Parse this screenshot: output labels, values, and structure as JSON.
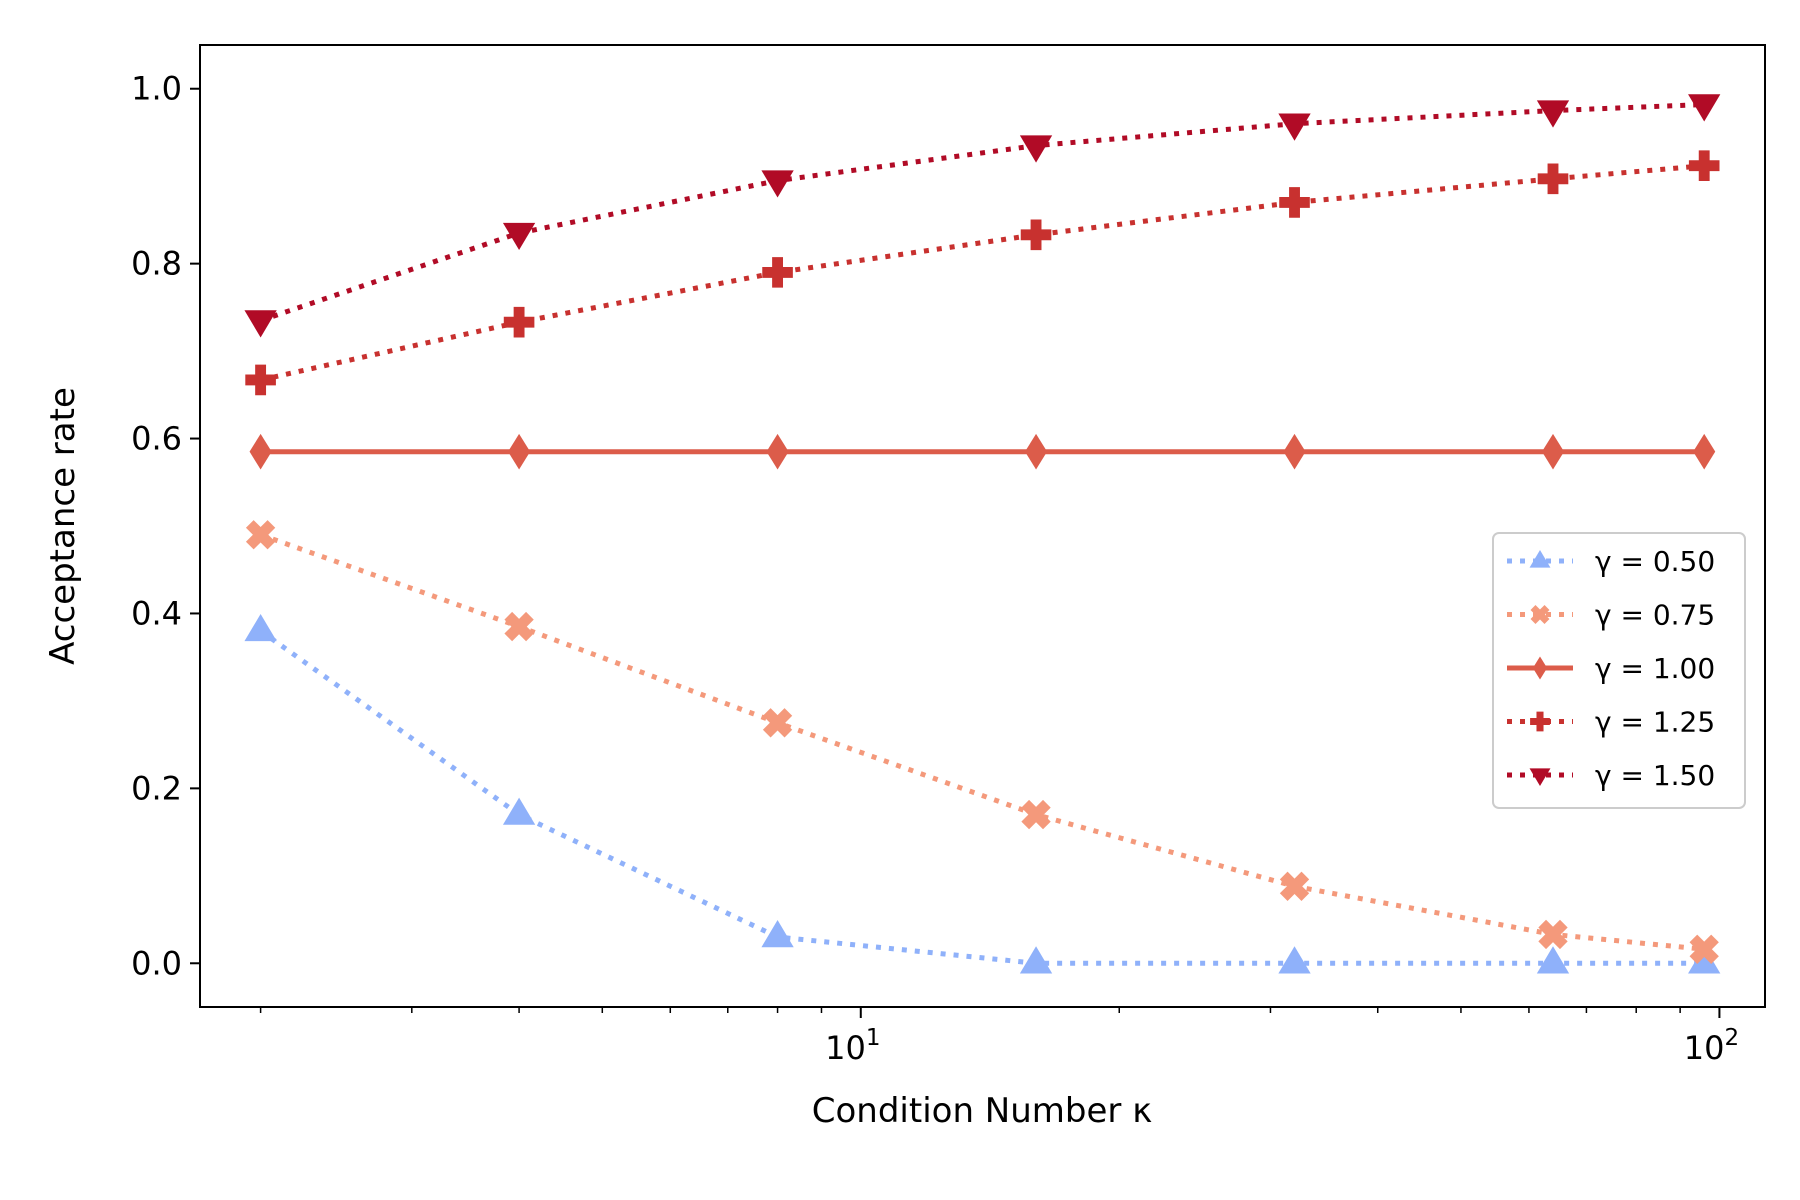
{
  "chart_data": {
    "type": "line",
    "title": "",
    "xlabel": "Condition Number κ",
    "ylabel": "Acceptance rate",
    "xscale": "log",
    "xlim": [
      1.7,
      113
    ],
    "ylim": [
      -0.05,
      1.05
    ],
    "grid": false,
    "legend_position": "center-right",
    "x": [
      2,
      4,
      8,
      16,
      32,
      64,
      96
    ],
    "x_major_ticks": [
      {
        "value": 10,
        "label": "10",
        "exp": "1"
      },
      {
        "value": 100,
        "label": "10",
        "exp": "2"
      }
    ],
    "x_minor_ticks": [
      2,
      3,
      4,
      5,
      6,
      7,
      8,
      9,
      20,
      30,
      40,
      50,
      60,
      70,
      80,
      90
    ],
    "y_ticks": [
      {
        "value": 0.0,
        "label": "0.0"
      },
      {
        "value": 0.2,
        "label": "0.2"
      },
      {
        "value": 0.4,
        "label": "0.4"
      },
      {
        "value": 0.6,
        "label": "0.6"
      },
      {
        "value": 0.8,
        "label": "0.8"
      },
      {
        "value": 1.0,
        "label": "1.0"
      }
    ],
    "series": [
      {
        "name": "γ = 0.50",
        "gamma": "0.50",
        "color": "#8fb1fa",
        "marker": "triangle-up",
        "line": "dotted",
        "values": [
          0.38,
          0.17,
          0.03,
          0.0,
          0.0,
          0.0,
          0.0
        ]
      },
      {
        "name": "γ = 0.75",
        "gamma": "0.75",
        "color": "#f4997b",
        "marker": "x-filled",
        "line": "dotted",
        "values": [
          0.49,
          0.385,
          0.275,
          0.17,
          0.088,
          0.033,
          0.016
        ]
      },
      {
        "name": "γ = 1.00",
        "gamma": "1.00",
        "color": "#dc5c4a",
        "marker": "diamond",
        "line": "solid",
        "values": [
          0.585,
          0.585,
          0.585,
          0.585,
          0.585,
          0.585,
          0.585
        ]
      },
      {
        "name": "γ = 1.25",
        "gamma": "1.25",
        "color": "#c8312f",
        "marker": "plus-filled",
        "line": "dotted",
        "values": [
          0.667,
          0.733,
          0.79,
          0.833,
          0.87,
          0.897,
          0.912
        ]
      },
      {
        "name": "γ = 1.50",
        "gamma": "1.50",
        "color": "#b10b26",
        "marker": "triangle-down",
        "line": "dotted",
        "values": [
          0.735,
          0.835,
          0.895,
          0.935,
          0.96,
          0.975,
          0.982
        ]
      }
    ]
  }
}
